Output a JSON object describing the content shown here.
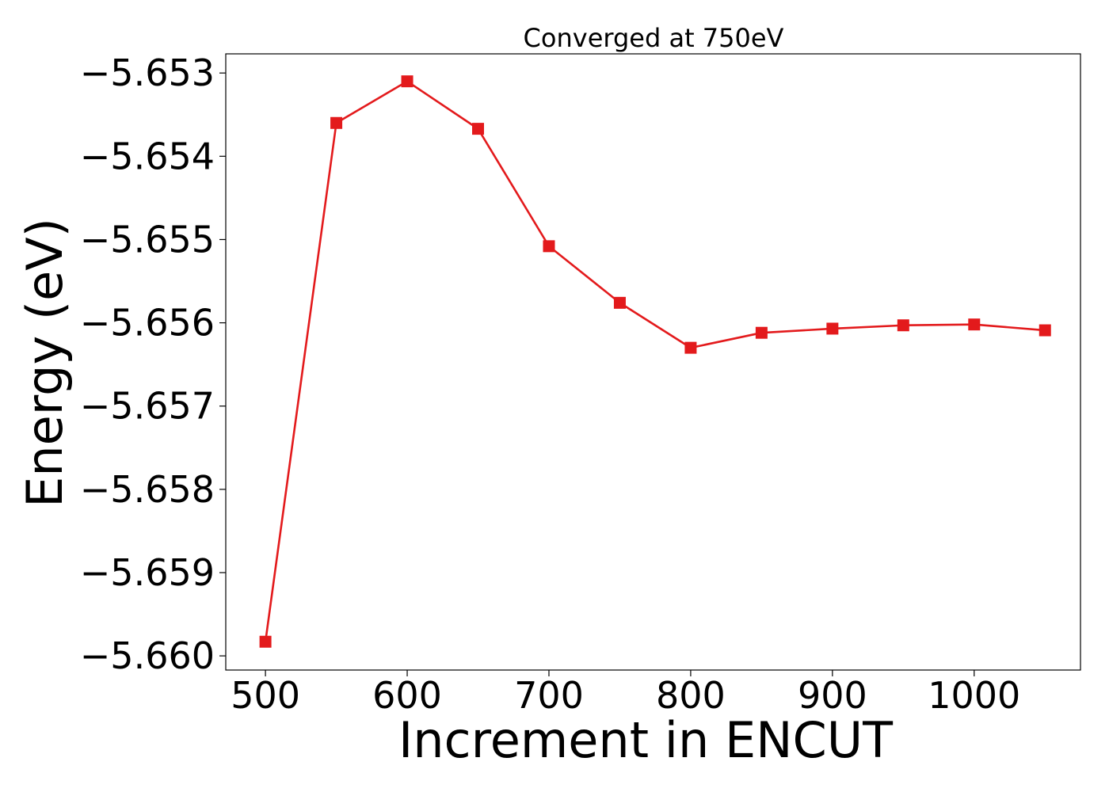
{
  "chart_data": {
    "type": "line",
    "title": "Converged at 750eV",
    "xlabel": "Increment in ENCUT",
    "ylabel": "Energy (eV)",
    "xlim": [
      472,
      1075
    ],
    "ylim": [
      -5.66017,
      -5.65277
    ],
    "x_ticks": [
      500,
      600,
      700,
      800,
      900,
      1000
    ],
    "x_tick_labels": [
      "500",
      "600",
      "700",
      "800",
      "900",
      "1000"
    ],
    "y_ticks": [
      -5.653,
      -5.654,
      -5.655,
      -5.656,
      -5.657,
      -5.658,
      -5.659,
      -5.66
    ],
    "y_tick_labels": [
      "−5.653",
      "−5.654",
      "−5.655",
      "−5.656",
      "−5.657",
      "−5.658",
      "−5.659",
      "−5.660"
    ],
    "grid": false,
    "series": [
      {
        "color": "#e31a1c",
        "marker": "square",
        "x": [
          500,
          550,
          600,
          650,
          700,
          750,
          800,
          850,
          900,
          950,
          1000,
          1050
        ],
        "y": [
          -5.65983,
          -5.6536,
          -5.6531,
          -5.65367,
          -5.65508,
          -5.65576,
          -5.6563,
          -5.65612,
          -5.65607,
          -5.65603,
          -5.65602,
          -5.65609
        ]
      }
    ]
  }
}
